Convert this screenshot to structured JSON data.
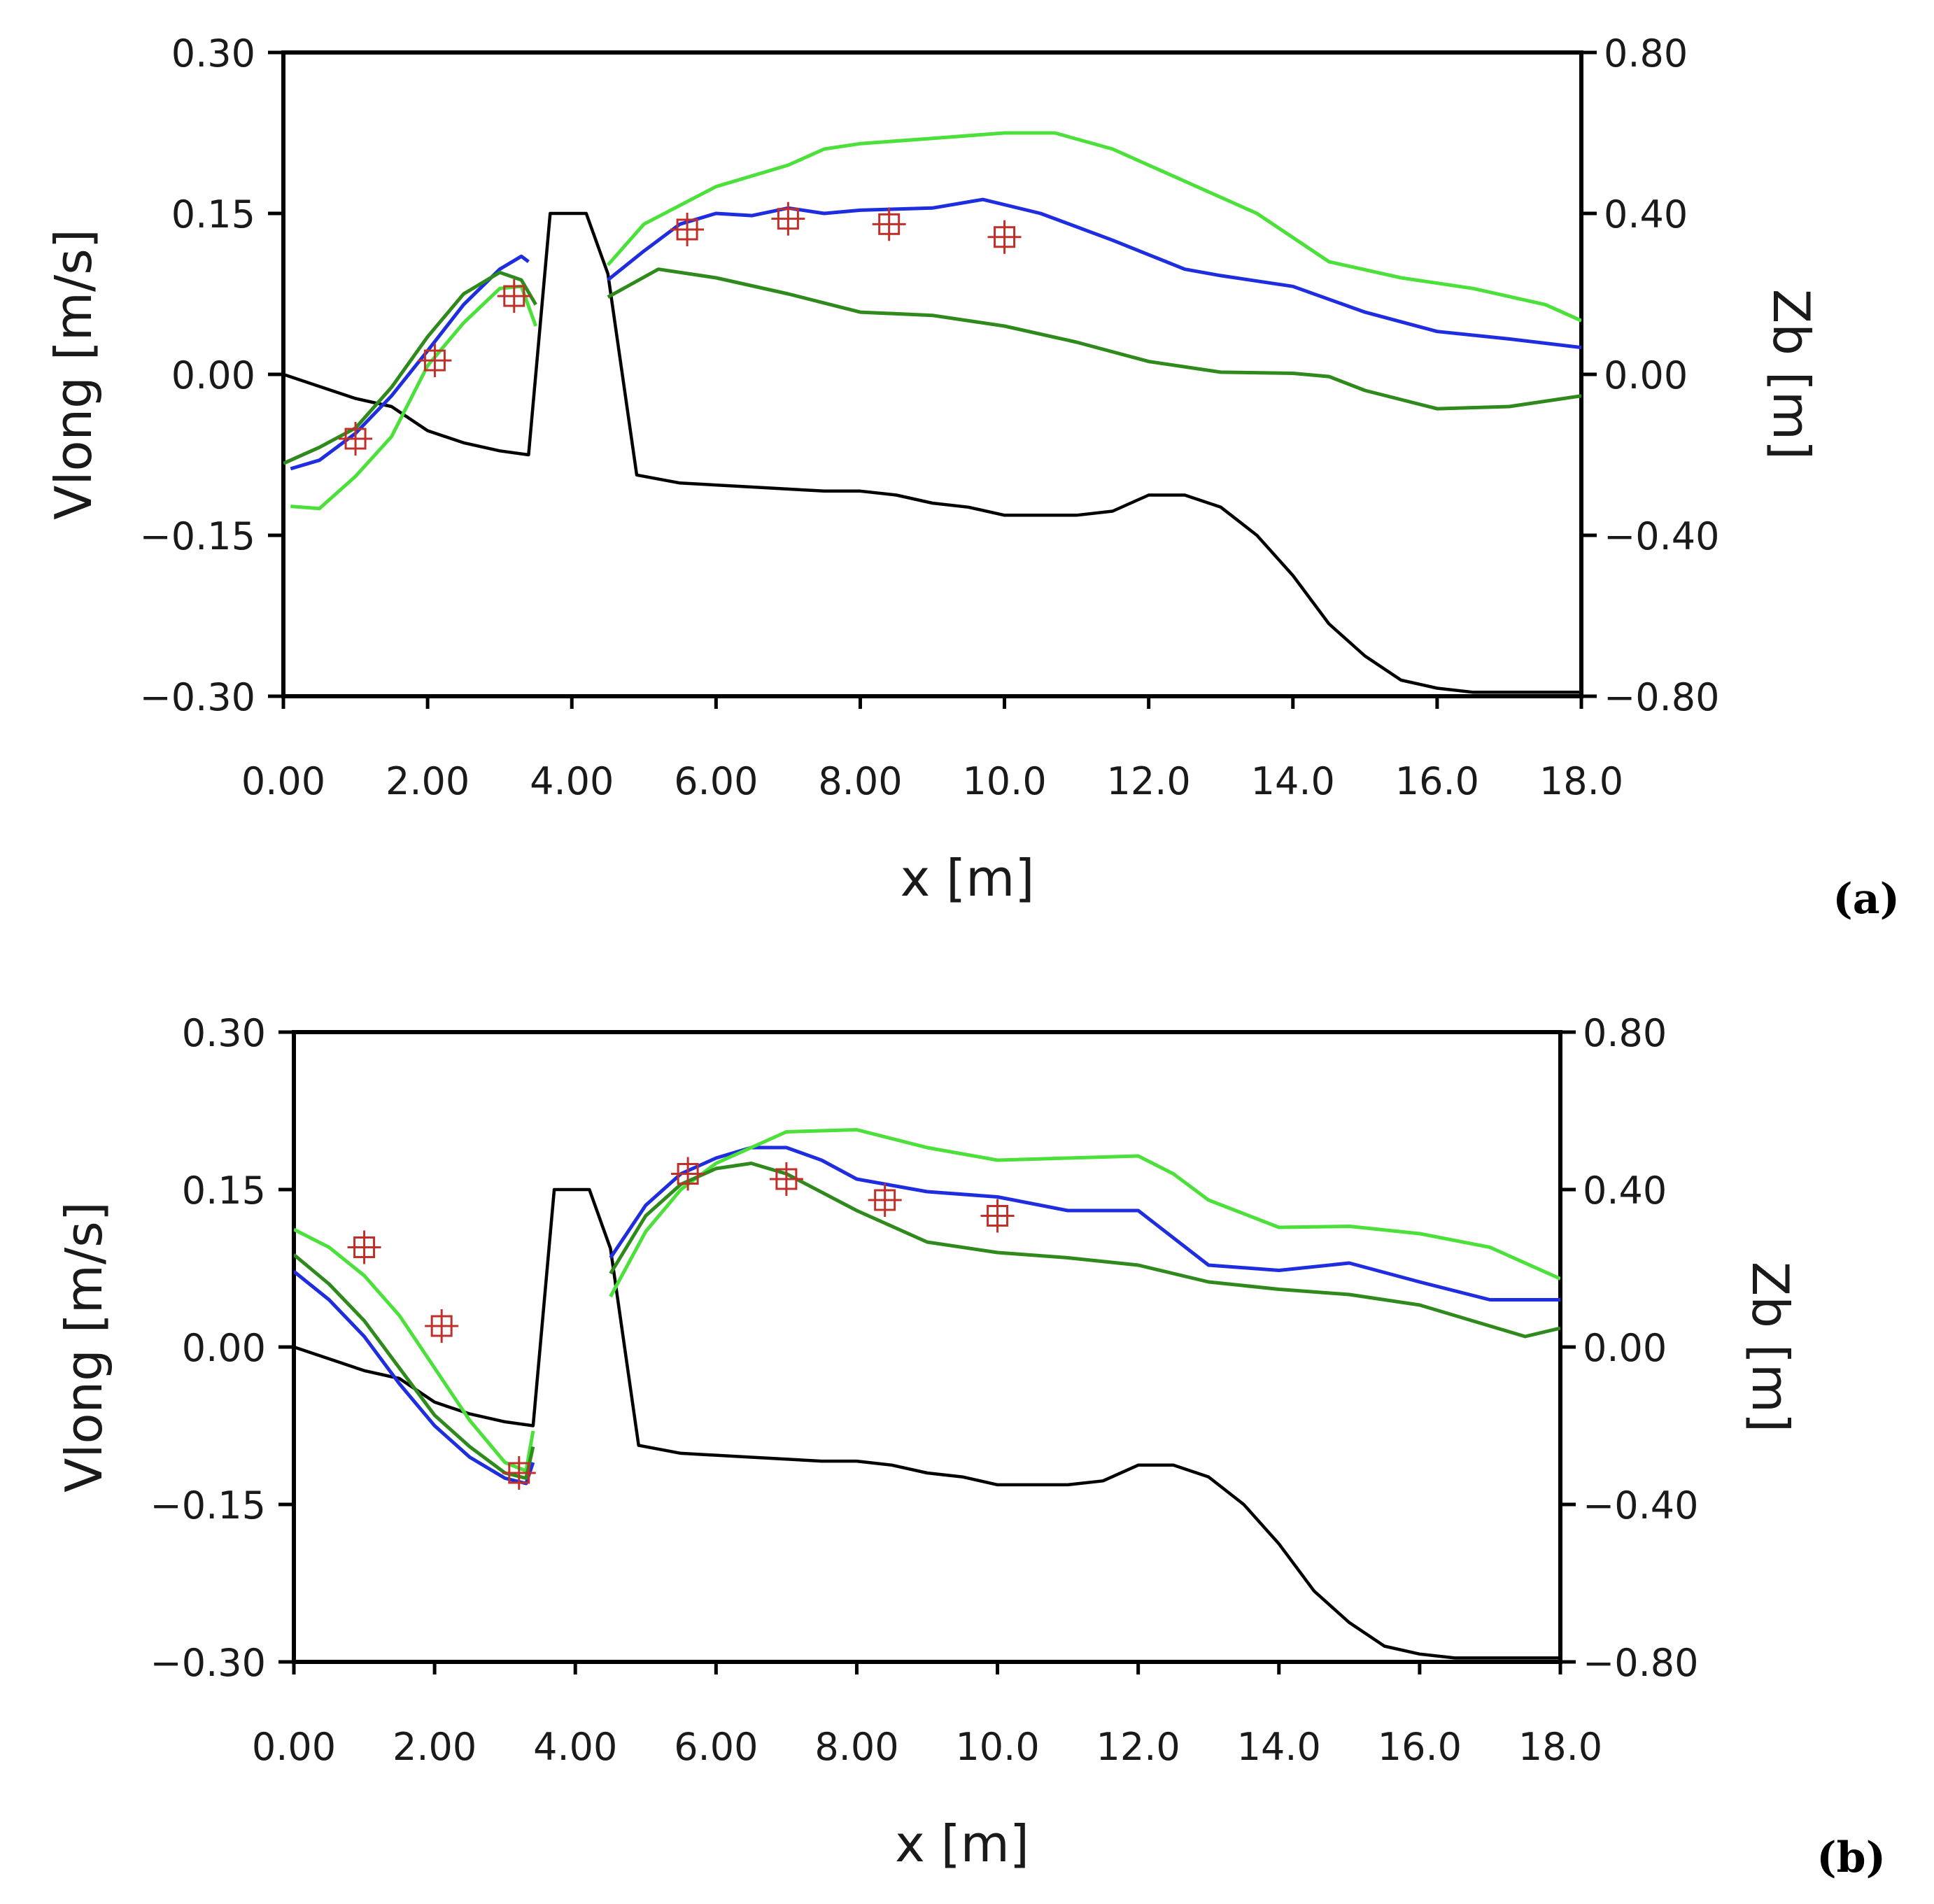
{
  "chart_data": [
    {
      "type": "line",
      "panel_label": "(a)",
      "xlabel": "x [m]",
      "ylabel": "Vlong [m/s]",
      "y2label": "Zb [m]",
      "xlim": [
        0,
        18
      ],
      "ylim": [
        -0.3,
        0.3
      ],
      "y2lim": [
        -0.8,
        0.8
      ],
      "xticks": [
        "0.00",
        "2.00",
        "4.00",
        "6.00",
        "8.00",
        "10.0",
        "12.0",
        "14.0",
        "16.0",
        "18.0"
      ],
      "yticks": [
        "0.30",
        "0.15",
        "0.00",
        "−0.15",
        "−0.30"
      ],
      "y2ticks": [
        "0.80",
        "0.40",
        "0.00",
        "−0.40",
        "−0.80"
      ],
      "series": [
        {
          "name": "blue",
          "axis": "left",
          "color": "#1f2de0",
          "x": [
            0.1,
            0.5,
            1.0,
            1.5,
            2.0,
            2.5,
            3.0,
            3.3,
            3.4,
            null,
            4.5,
            5.0,
            5.5,
            6.0,
            6.5,
            7.0,
            7.5,
            8.0,
            9.0,
            9.7,
            10.5,
            11.5,
            12.5,
            13.0,
            14.0,
            15.0,
            16.0,
            17.0,
            18.0
          ],
          "y": [
            -0.088,
            -0.08,
            -0.055,
            -0.02,
            0.022,
            0.065,
            0.098,
            0.11,
            0.105,
            null,
            0.088,
            0.115,
            0.14,
            0.15,
            0.148,
            0.155,
            0.15,
            0.153,
            0.155,
            0.163,
            0.15,
            0.125,
            0.098,
            0.092,
            0.082,
            0.058,
            0.04,
            0.033,
            0.025
          ]
        },
        {
          "name": "light green",
          "axis": "left",
          "color": "#4be03a",
          "x": [
            0.1,
            0.5,
            1.0,
            1.5,
            2.0,
            2.5,
            3.0,
            3.3,
            3.5,
            null,
            4.5,
            5.0,
            6.0,
            7.0,
            7.5,
            8.0,
            9.0,
            10.0,
            10.7,
            11.5,
            12.5,
            13.5,
            14.5,
            15.5,
            16.5,
            17.5,
            18.0
          ],
          "y": [
            -0.123,
            -0.125,
            -0.095,
            -0.058,
            0.008,
            0.048,
            0.08,
            0.082,
            0.045,
            null,
            0.102,
            0.14,
            0.175,
            0.195,
            0.21,
            0.215,
            0.22,
            0.225,
            0.225,
            0.21,
            0.18,
            0.15,
            0.105,
            0.09,
            0.08,
            0.065,
            0.05
          ]
        },
        {
          "name": "dark green",
          "axis": "left",
          "color": "#2f8a1c",
          "x": [
            0.0,
            0.5,
            1.0,
            1.5,
            2.0,
            2.5,
            3.0,
            3.3,
            3.5,
            null,
            4.5,
            5.2,
            6.0,
            7.0,
            8.0,
            9.0,
            10.0,
            11.0,
            12.0,
            13.0,
            14.0,
            14.5,
            15.0,
            16.0,
            17.0,
            18.0
          ],
          "y": [
            -0.083,
            -0.068,
            -0.05,
            -0.012,
            0.035,
            0.075,
            0.095,
            0.088,
            0.065,
            null,
            0.072,
            0.098,
            0.09,
            0.075,
            0.058,
            0.055,
            0.045,
            0.03,
            0.012,
            0.002,
            0.001,
            -0.002,
            -0.015,
            -0.032,
            -0.03,
            -0.02
          ]
        },
        {
          "name": "Zb (bed)",
          "axis": "right",
          "color": "#000000",
          "x": [
            0.0,
            0.5,
            1.0,
            1.5,
            2.0,
            2.5,
            3.0,
            3.4,
            3.7,
            4.2,
            4.5,
            4.9,
            5.5,
            6.5,
            7.5,
            8.0,
            8.5,
            9.0,
            9.5,
            10.0,
            11.0,
            11.5,
            12.0,
            12.5,
            13.0,
            13.5,
            14.0,
            14.5,
            15.0,
            15.5,
            16.0,
            16.5,
            17.0,
            18.0
          ],
          "y": [
            0.0,
            -0.03,
            -0.06,
            -0.08,
            -0.14,
            -0.17,
            -0.19,
            -0.2,
            0.4,
            0.4,
            0.25,
            -0.25,
            -0.27,
            -0.28,
            -0.29,
            -0.29,
            -0.3,
            -0.32,
            -0.33,
            -0.35,
            -0.35,
            -0.34,
            -0.3,
            -0.3,
            -0.33,
            -0.4,
            -0.5,
            -0.62,
            -0.7,
            -0.76,
            -0.78,
            -0.79,
            -0.79,
            -0.79
          ]
        }
      ],
      "measured": {
        "name": "measurements",
        "marker": "crossed square",
        "color": "#c0302a",
        "x": [
          1.0,
          2.1,
          3.2,
          5.6,
          7.0,
          8.4,
          10.0
        ],
        "y": [
          -0.06,
          0.013,
          0.073,
          0.135,
          0.145,
          0.14,
          0.128
        ]
      }
    },
    {
      "type": "line",
      "panel_label": "(b)",
      "xlabel": "x [m]",
      "ylabel": "Vlong [m/s]",
      "y2label": "Zb [m]",
      "xlim": [
        0,
        18
      ],
      "ylim": [
        -0.3,
        0.3
      ],
      "y2lim": [
        -0.8,
        0.8
      ],
      "xticks": [
        "0.00",
        "2.00",
        "4.00",
        "6.00",
        "8.00",
        "10.0",
        "12.0",
        "14.0",
        "16.0",
        "18.0"
      ],
      "yticks": [
        "0.30",
        "0.15",
        "0.00",
        "−0.15",
        "−0.30"
      ],
      "y2ticks": [
        "0.80",
        "0.40",
        "0.00",
        "−0.40",
        "−0.80"
      ],
      "series": [
        {
          "name": "blue",
          "axis": "left",
          "color": "#1f2de0",
          "x": [
            0.0,
            0.5,
            1.0,
            1.5,
            2.0,
            2.5,
            3.0,
            3.3,
            3.4,
            null,
            4.5,
            5.0,
            5.5,
            6.0,
            6.5,
            7.0,
            7.5,
            8.0,
            9.0,
            10.0,
            11.0,
            12.0,
            13.0,
            14.0,
            15.0,
            16.0,
            17.0,
            18.0
          ],
          "y": [
            0.072,
            0.045,
            0.01,
            -0.035,
            -0.075,
            -0.105,
            -0.125,
            -0.13,
            -0.11,
            null,
            0.085,
            0.135,
            0.165,
            0.18,
            0.19,
            0.19,
            0.178,
            0.16,
            0.148,
            0.143,
            0.13,
            0.13,
            0.078,
            0.073,
            0.08,
            0.062,
            0.045,
            0.045
          ]
        },
        {
          "name": "light green",
          "axis": "left",
          "color": "#4be03a",
          "x": [
            0.0,
            0.5,
            1.0,
            1.5,
            2.0,
            2.5,
            3.0,
            3.3,
            3.4,
            null,
            4.5,
            5.0,
            5.5,
            6.0,
            6.5,
            7.0,
            8.0,
            9.0,
            10.0,
            11.0,
            12.0,
            12.5,
            13.0,
            14.0,
            15.0,
            16.0,
            17.0,
            18.0
          ],
          "y": [
            0.112,
            0.095,
            0.068,
            0.03,
            -0.02,
            -0.07,
            -0.11,
            -0.118,
            -0.08,
            null,
            0.048,
            0.11,
            0.15,
            0.175,
            0.19,
            0.205,
            0.207,
            0.19,
            0.178,
            0.18,
            0.182,
            0.165,
            0.14,
            0.114,
            0.115,
            0.108,
            0.095,
            0.065
          ]
        },
        {
          "name": "dark green",
          "axis": "left",
          "color": "#2f8a1c",
          "x": [
            0.0,
            0.5,
            1.0,
            1.5,
            2.0,
            2.5,
            3.0,
            3.3,
            3.4,
            null,
            4.5,
            5.0,
            5.5,
            6.0,
            6.5,
            7.0,
            8.0,
            9.0,
            10.0,
            11.0,
            12.0,
            13.0,
            14.0,
            15.0,
            16.0,
            17.0,
            17.5,
            18.0
          ],
          "y": [
            0.088,
            0.06,
            0.025,
            -0.02,
            -0.065,
            -0.095,
            -0.12,
            -0.125,
            -0.095,
            null,
            0.07,
            0.125,
            0.155,
            0.17,
            0.175,
            0.165,
            0.13,
            0.1,
            0.09,
            0.085,
            0.078,
            0.062,
            0.055,
            0.05,
            0.04,
            0.02,
            0.01,
            0.018
          ]
        },
        {
          "name": "Zb (bed)",
          "axis": "right",
          "color": "#000000",
          "x": [
            0.0,
            0.5,
            1.0,
            1.5,
            2.0,
            2.5,
            3.0,
            3.4,
            3.7,
            4.2,
            4.5,
            4.9,
            5.5,
            6.5,
            7.5,
            8.0,
            8.5,
            9.0,
            9.5,
            10.0,
            11.0,
            11.5,
            12.0,
            12.5,
            13.0,
            13.5,
            14.0,
            14.5,
            15.0,
            15.5,
            16.0,
            16.5,
            17.0,
            18.0
          ],
          "y": [
            0.0,
            -0.03,
            -0.06,
            -0.08,
            -0.14,
            -0.17,
            -0.19,
            -0.2,
            0.4,
            0.4,
            0.25,
            -0.25,
            -0.27,
            -0.28,
            -0.29,
            -0.29,
            -0.3,
            -0.32,
            -0.33,
            -0.35,
            -0.35,
            -0.34,
            -0.3,
            -0.3,
            -0.33,
            -0.4,
            -0.5,
            -0.62,
            -0.7,
            -0.76,
            -0.78,
            -0.79,
            -0.79,
            -0.79
          ]
        }
      ],
      "measured": {
        "name": "measurements",
        "marker": "crossed square",
        "color": "#c0302a",
        "x": [
          1.0,
          2.1,
          3.2,
          5.6,
          7.0,
          8.4,
          10.0
        ],
        "y": [
          0.095,
          0.02,
          -0.12,
          0.165,
          0.16,
          0.14,
          0.125
        ]
      }
    }
  ]
}
